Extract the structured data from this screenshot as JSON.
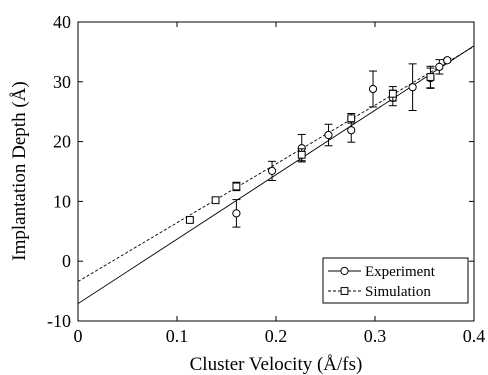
{
  "chart_data": {
    "type": "scatter",
    "title": "",
    "xlabel": "Cluster Velocity (Å/fs)",
    "ylabel": "Implantation Depth (Å)",
    "xlim": [
      0,
      0.4
    ],
    "ylim": [
      -10,
      40
    ],
    "x_ticks": [
      0,
      0.1,
      0.2,
      0.3,
      0.4
    ],
    "x_tick_labels": [
      "0",
      "0.1",
      "0.2",
      "0.3",
      "0.4"
    ],
    "y_ticks": [
      -10,
      0,
      10,
      20,
      30,
      40
    ],
    "y_tick_labels": [
      "-10",
      "0",
      "10",
      "20",
      "30",
      "40"
    ],
    "grid": false,
    "legend_position": "bottom-right",
    "series": [
      {
        "name": "Experiment",
        "marker": "circle",
        "line_style": "solid",
        "fit": {
          "slope": 107.8,
          "intercept": -7.1
        },
        "points": [
          {
            "x": 0.16,
            "y": 8.0,
            "err": 2.3
          },
          {
            "x": 0.196,
            "y": 15.1,
            "err": 1.6
          },
          {
            "x": 0.226,
            "y": 18.9,
            "err": 2.3
          },
          {
            "x": 0.253,
            "y": 21.1,
            "err": 1.8
          },
          {
            "x": 0.276,
            "y": 21.9,
            "err": 2.0
          },
          {
            "x": 0.298,
            "y": 28.8,
            "err": 3.0
          },
          {
            "x": 0.318,
            "y": 27.3,
            "err": 1.3
          },
          {
            "x": 0.338,
            "y": 29.1,
            "err": 3.9
          },
          {
            "x": 0.356,
            "y": 30.6,
            "err": 1.7
          },
          {
            "x": 0.365,
            "y": 32.5,
            "err": 1.2
          },
          {
            "x": 0.373,
            "y": 33.6,
            "err": 0.3
          }
        ]
      },
      {
        "name": "Simulation",
        "marker": "square",
        "line_style": "dashed",
        "fit": {
          "slope": 98.3,
          "intercept": -3.4
        },
        "points": [
          {
            "x": 0.113,
            "y": 6.9,
            "err": 0.3
          },
          {
            "x": 0.139,
            "y": 10.2,
            "err": 0.3
          },
          {
            "x": 0.16,
            "y": 12.5,
            "err": 0.7
          },
          {
            "x": 0.226,
            "y": 17.8,
            "err": 1.0
          },
          {
            "x": 0.276,
            "y": 23.9,
            "err": 0.8
          },
          {
            "x": 0.318,
            "y": 28.0,
            "err": 1.2
          },
          {
            "x": 0.356,
            "y": 30.8,
            "err": 1.8
          }
        ]
      }
    ]
  }
}
